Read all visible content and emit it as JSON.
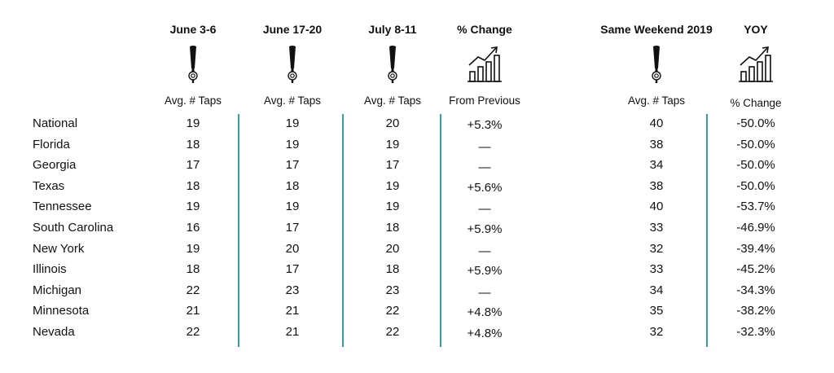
{
  "columns": [
    {
      "key": "c1",
      "header": "June 3-6",
      "icon": "beer-tap-icon",
      "sub": "Avg. # Taps"
    },
    {
      "key": "c2",
      "header": "June 17-20",
      "icon": "beer-tap-icon",
      "sub": "Avg. # Taps"
    },
    {
      "key": "c3",
      "header": "July 8-11",
      "icon": "beer-tap-icon",
      "sub": "Avg. # Taps"
    },
    {
      "key": "c4",
      "header": "% Change",
      "icon": "growth-chart-icon",
      "sub": "From Previous"
    },
    {
      "key": "c5",
      "header": "Same Weekend 2019",
      "icon": "beer-tap-icon",
      "sub": "Avg. # Taps"
    },
    {
      "key": "c6",
      "header": "YOY",
      "icon": "growth-chart-icon",
      "sub": "% Change"
    }
  ],
  "accent_color": "#3a9ba3",
  "chart_data": {
    "type": "table",
    "rows": [
      {
        "state": "National",
        "c1": "19",
        "c2": "19",
        "c3": "20",
        "c4": "+5.3%",
        "c5": "40",
        "c6": "-50.0%"
      },
      {
        "state": "Florida",
        "c1": "18",
        "c2": "19",
        "c3": "19",
        "c4": "—",
        "c5": "38",
        "c6": "-50.0%"
      },
      {
        "state": "Georgia",
        "c1": "17",
        "c2": "17",
        "c3": "17",
        "c4": "—",
        "c5": "34",
        "c6": "-50.0%"
      },
      {
        "state": "Texas",
        "c1": "18",
        "c2": "18",
        "c3": "19",
        "c4": "+5.6%",
        "c5": "38",
        "c6": "-50.0%"
      },
      {
        "state": "Tennessee",
        "c1": "19",
        "c2": "19",
        "c3": "19",
        "c4": "—",
        "c5": "40",
        "c6": "-53.7%"
      },
      {
        "state": "South Carolina",
        "c1": "16",
        "c2": "17",
        "c3": "18",
        "c4": "+5.9%",
        "c5": "33",
        "c6": "-46.9%"
      },
      {
        "state": "New York",
        "c1": "19",
        "c2": "20",
        "c3": "20",
        "c4": "—",
        "c5": "32",
        "c6": "-39.4%"
      },
      {
        "state": "Illinois",
        "c1": "18",
        "c2": "17",
        "c3": "18",
        "c4": "+5.9%",
        "c5": "33",
        "c6": "-45.2%"
      },
      {
        "state": "Michigan",
        "c1": "22",
        "c2": "23",
        "c3": "23",
        "c4": "—",
        "c5": "34",
        "c6": "-34.3%"
      },
      {
        "state": "Minnesota",
        "c1": "21",
        "c2": "21",
        "c3": "22",
        "c4": "+4.8%",
        "c5": "35",
        "c6": "-38.2%"
      },
      {
        "state": "Nevada",
        "c1": "22",
        "c2": "21",
        "c3": "22",
        "c4": "+4.8%",
        "c5": "32",
        "c6": "-32.3%"
      }
    ]
  }
}
